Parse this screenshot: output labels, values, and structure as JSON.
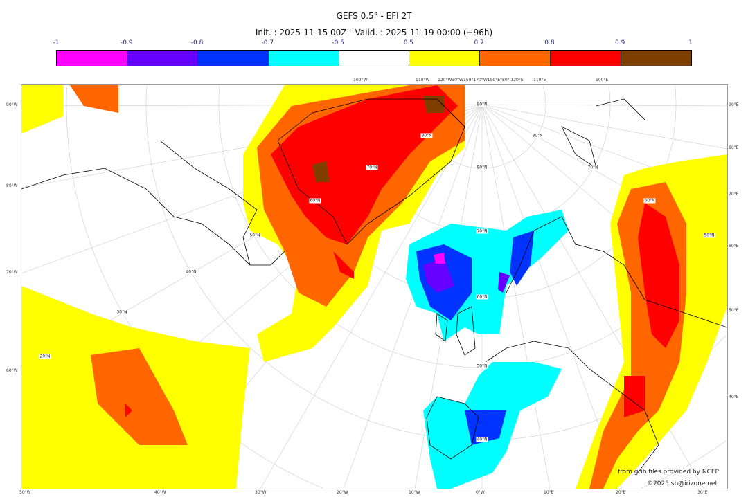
{
  "title": "GEFS 0.5° - EFI 2T",
  "subtitle": "Init. : 2025-11-15 00Z - Valid. : 2025-11-19 00:00 (+96h)",
  "colorbar": {
    "ticks": [
      "-1",
      "-0.9",
      "-0.8",
      "-0.7",
      "-0.5",
      "0.5",
      "0.7",
      "0.8",
      "0.9",
      "1"
    ],
    "colors": [
      "#ff00ff",
      "#6600ff",
      "#0033ff",
      "#00ffff",
      "#ffffff",
      "#ffff00",
      "#ff6600",
      "#ff0000",
      "#7f3f00"
    ]
  },
  "axes": {
    "left": [
      "90°W",
      "80°W",
      "70°W",
      "60°W"
    ],
    "right": [
      "90°E",
      "80°E",
      "70°E",
      "60°E",
      "50°E",
      "40°E"
    ],
    "bottom": [
      "50°W",
      "40°W",
      "30°W",
      "20°W",
      "10°W",
      "0°W",
      "10°E",
      "20°E",
      "30°E"
    ],
    "top": [
      "100°W",
      "110°W",
      "120°W30°W150°170°W150°E°E0°I120°E",
      "110°E",
      "100°E"
    ]
  },
  "lat_labels": [
    "90°N",
    "80°N",
    "70°N",
    "60°N",
    "50°N",
    "40°N",
    "80°N",
    "80°N",
    "70°N",
    "70°N",
    "60°N",
    "60°N",
    "50°N",
    "50°N",
    "40°N",
    "30°N",
    "20°N"
  ],
  "credits": {
    "source": "from grib files provided by NCEP",
    "copyright": "©2025 sb@irizone.net"
  }
}
